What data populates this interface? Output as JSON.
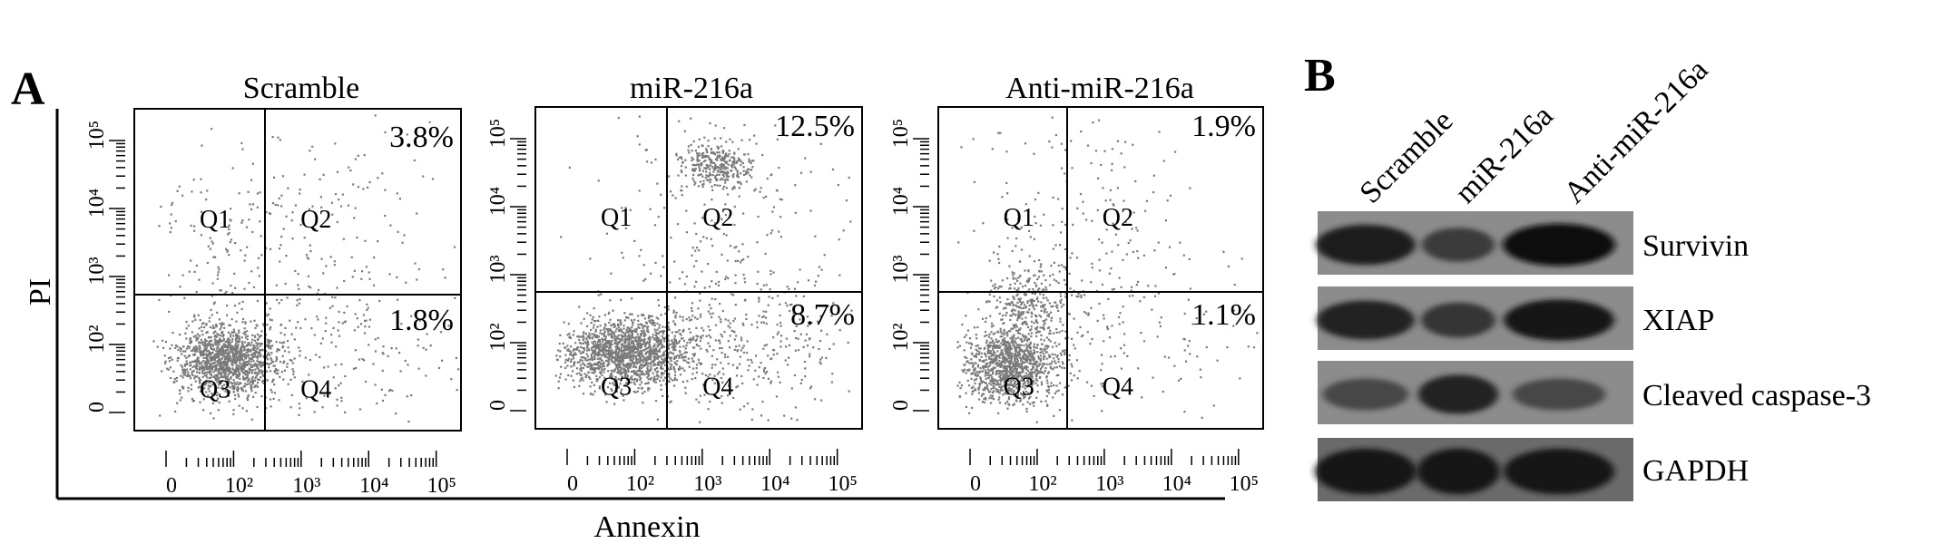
{
  "panel_a": {
    "letter": "A",
    "y_axis_label": "PI",
    "x_axis_label": "Annexin",
    "x_tick_labels": [
      "0",
      "10²",
      "10³",
      "10⁴",
      "10⁵"
    ],
    "y_tick_labels": [
      "0",
      "10²",
      "10³",
      "10⁴",
      "10⁵"
    ],
    "quadrant_labels": [
      "Q1",
      "Q2",
      "Q3",
      "Q4"
    ]
  },
  "chart_data": [
    {
      "type": "scatter",
      "title": "Scramble",
      "xlabel": "Annexin",
      "ylabel": "PI",
      "x_scale": "log",
      "y_scale": "log",
      "quadrant_percentages": {
        "Q2": "3.8%",
        "Q4": "1.8%"
      },
      "quadrant_values_percent": {
        "Q2": 3.8,
        "Q4": 1.8
      }
    },
    {
      "type": "scatter",
      "title": "miR-216a",
      "xlabel": "Annexin",
      "ylabel": "PI",
      "x_scale": "log",
      "y_scale": "log",
      "quadrant_percentages": {
        "Q2": "12.5%",
        "Q4": "8.7%"
      },
      "quadrant_values_percent": {
        "Q2": 12.5,
        "Q4": 8.7
      }
    },
    {
      "type": "scatter",
      "title": "Anti-miR-216a",
      "xlabel": "Annexin",
      "ylabel": "PI",
      "x_scale": "log",
      "y_scale": "log",
      "quadrant_percentages": {
        "Q2": "1.9%",
        "Q4": "1.1%"
      },
      "quadrant_values_percent": {
        "Q2": 1.9,
        "Q4": 1.1
      }
    }
  ],
  "panel_b": {
    "letter": "B",
    "lanes": [
      "Scramble",
      "miR-216a",
      "Anti-miR-216a"
    ],
    "blots": [
      {
        "protein": "Survivin",
        "band_intensity": [
          0.85,
          0.55,
          0.95
        ]
      },
      {
        "protein": "XIAP",
        "band_intensity": [
          0.8,
          0.6,
          0.9
        ]
      },
      {
        "protein": "Cleaved caspase-3",
        "band_intensity": [
          0.45,
          0.8,
          0.45
        ]
      },
      {
        "protein": "GAPDH",
        "band_intensity": [
          0.9,
          0.9,
          0.9
        ]
      }
    ]
  }
}
